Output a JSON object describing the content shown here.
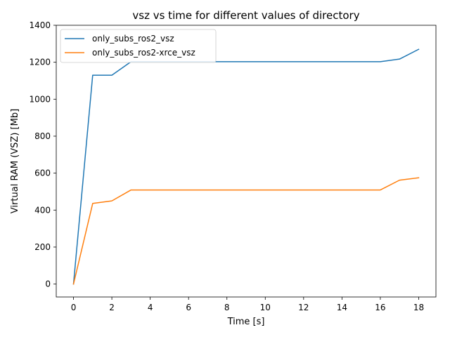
{
  "chart_data": {
    "type": "line",
    "title": "vsz vs time for different values of directory",
    "xlabel": "Time [s]",
    "ylabel": "Virtual RAM (VSZ) [Mb]",
    "xlim": [
      -0.9,
      18.9
    ],
    "ylim": [
      -70,
      1400
    ],
    "xticks": [
      0,
      2,
      4,
      6,
      8,
      10,
      12,
      14,
      16,
      18
    ],
    "yticks": [
      0,
      200,
      400,
      600,
      800,
      1000,
      1200,
      1400
    ],
    "grid": false,
    "legend_position": "top-left",
    "series": [
      {
        "name": "only_subs_ros2_vsz",
        "color": "#1f77b4",
        "x": [
          0,
          1,
          2,
          3,
          4,
          5,
          6,
          7,
          8,
          9,
          10,
          11,
          12,
          13,
          14,
          15,
          16,
          17,
          18
        ],
        "y": [
          0,
          1130,
          1130,
          1203,
          1203,
          1203,
          1203,
          1203,
          1203,
          1203,
          1203,
          1203,
          1203,
          1203,
          1203,
          1203,
          1203,
          1217,
          1270
        ]
      },
      {
        "name": "only_subs_ros2-xrce_vsz",
        "color": "#ff7f0e",
        "x": [
          0,
          1,
          2,
          3,
          4,
          5,
          6,
          7,
          8,
          9,
          10,
          11,
          12,
          13,
          14,
          15,
          16,
          17,
          18
        ],
        "y": [
          0,
          436,
          450,
          509,
          509,
          509,
          509,
          509,
          509,
          509,
          509,
          509,
          509,
          509,
          509,
          509,
          509,
          562,
          575
        ]
      }
    ]
  }
}
